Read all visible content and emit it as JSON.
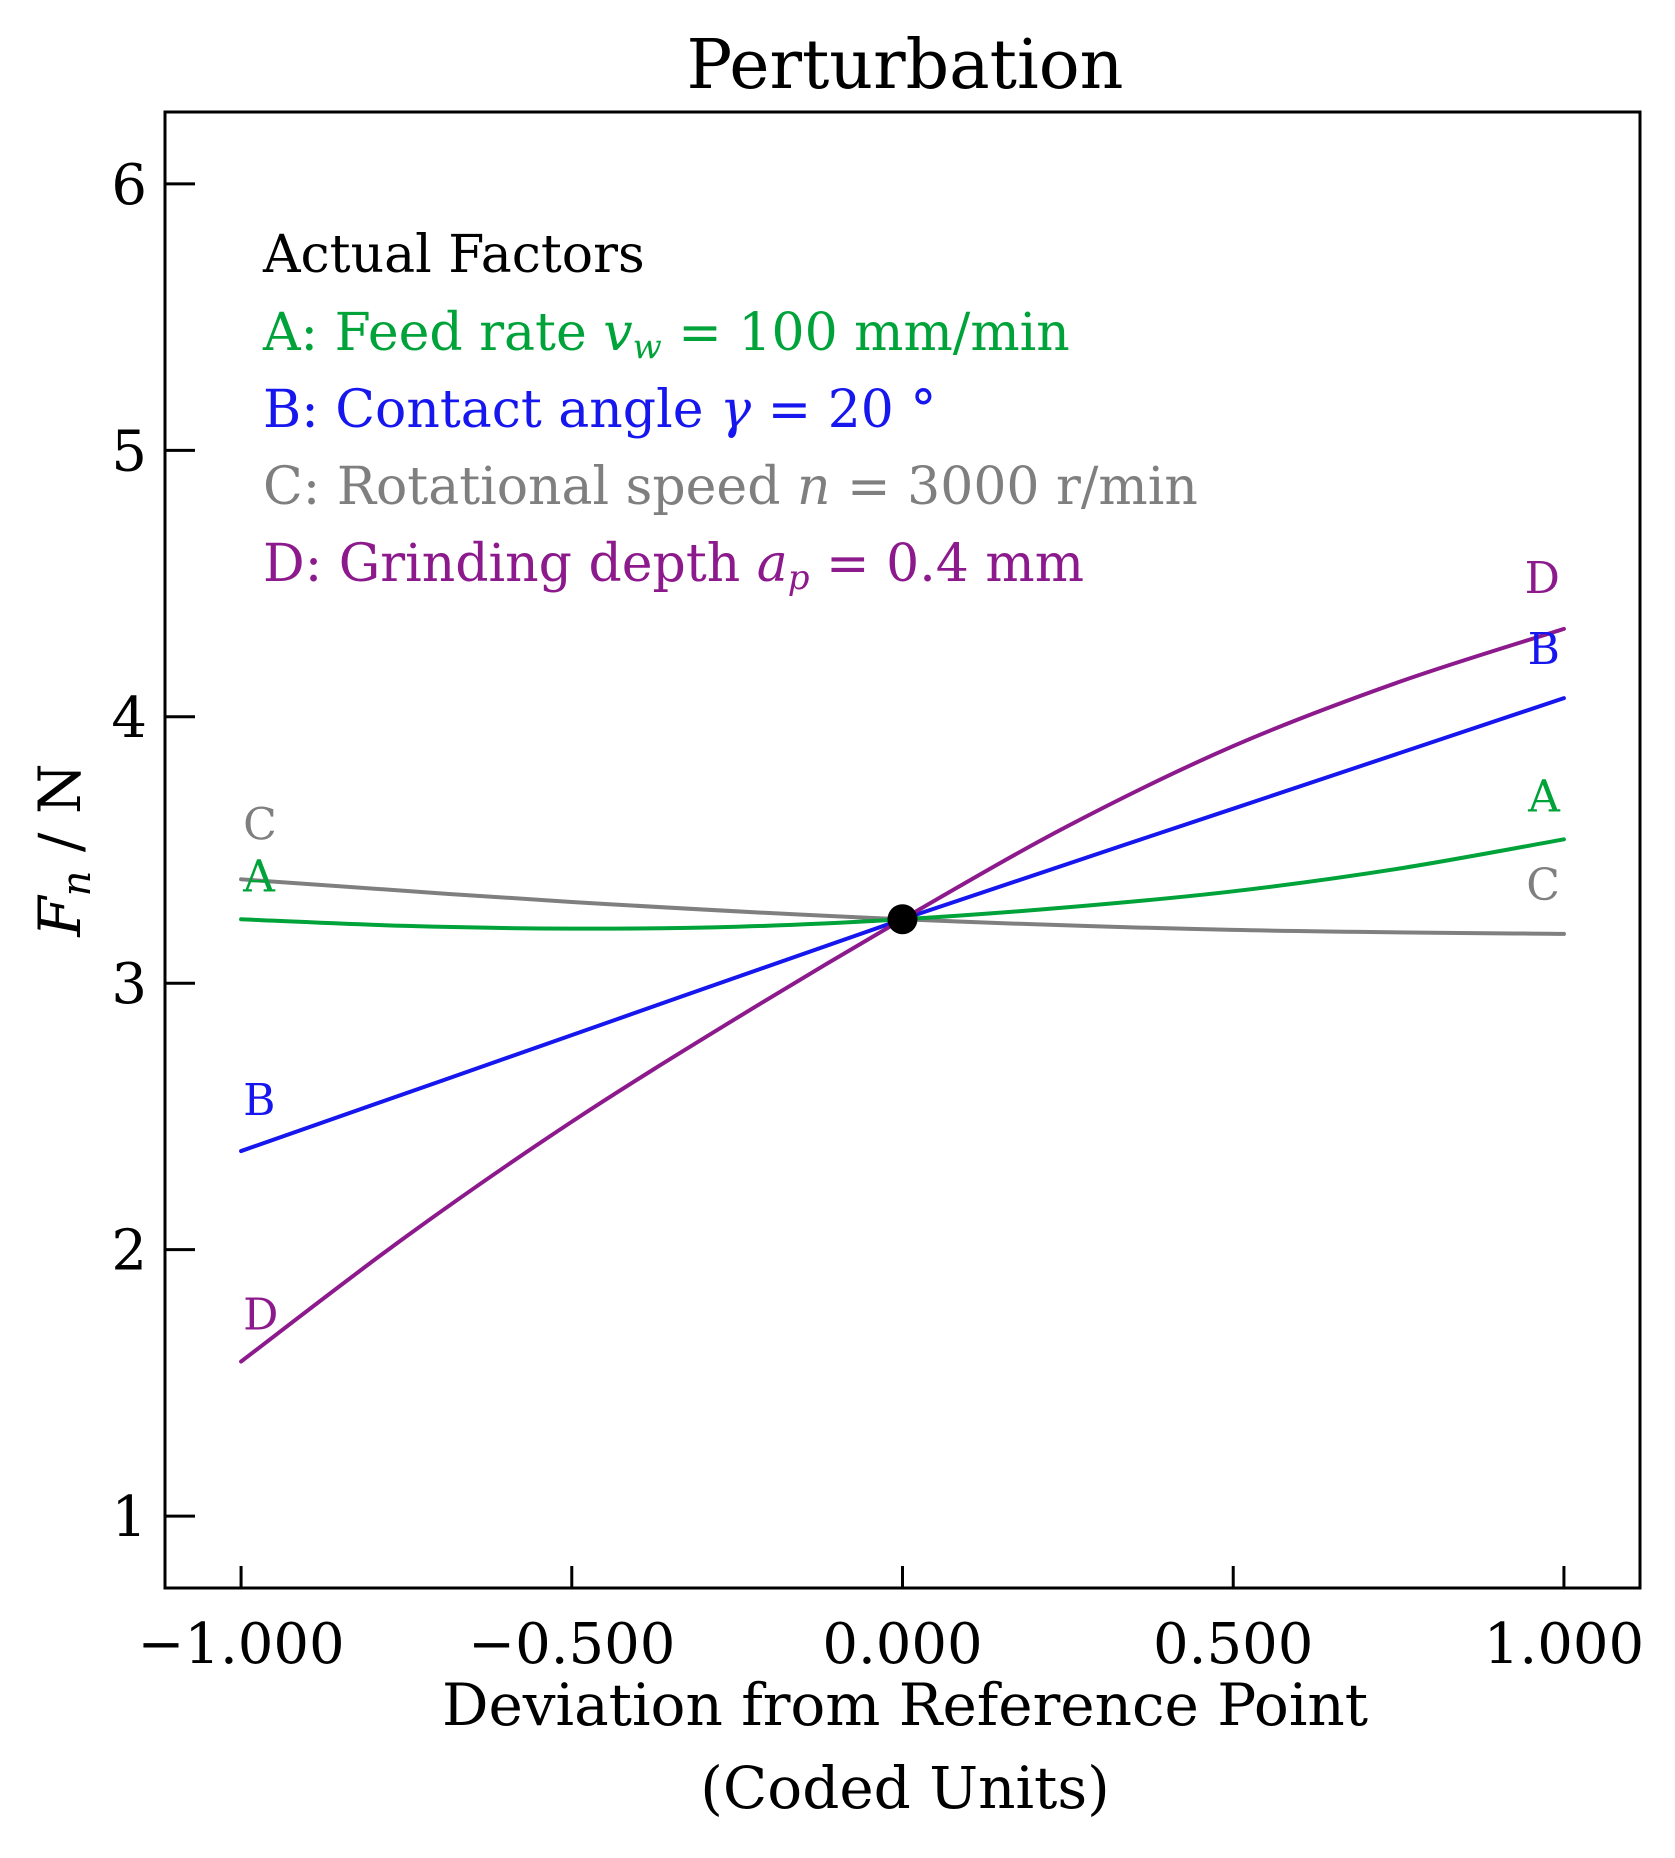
{
  "chart_data": {
    "type": "line",
    "title": "Perturbation",
    "xlabel": "Deviation from Reference Point",
    "xlabel_line2": "(Coded Units)",
    "ylabel": {
      "main": "F",
      "sub": "n",
      "rest": " / N"
    },
    "xlim": [
      -1.115,
      1.115
    ],
    "ylim": [
      0.73,
      6.27
    ],
    "xticks": [
      -1.0,
      -0.5,
      0.0,
      0.5,
      1.0
    ],
    "xtick_labels": [
      "−1.000",
      "−0.500",
      "0.000",
      "0.500",
      "1.000"
    ],
    "yticks": [
      1,
      2,
      3,
      4,
      5,
      6
    ],
    "ytick_labels": [
      "1",
      "2",
      "3",
      "4",
      "5",
      "6"
    ],
    "grid": false,
    "legend_title": "Actual Factors",
    "legend_placement": "top-left",
    "reference_point": {
      "x": 0.0,
      "y": 3.24
    },
    "series": [
      {
        "name": "A",
        "color": "#00a23a",
        "legend": {
          "prefix": "A: Feed rate ",
          "var": "v",
          "sub": "w",
          "suffix": " = 100 mm/min"
        },
        "x": [
          -1.0,
          -0.75,
          -0.5,
          -0.25,
          0.0,
          0.25,
          0.5,
          0.75,
          1.0
        ],
        "values": [
          3.24,
          3.215,
          3.205,
          3.212,
          3.24,
          3.285,
          3.345,
          3.43,
          3.54
        ]
      },
      {
        "name": "B",
        "color": "#1616ee",
        "legend": {
          "prefix": "B: Contact angle ",
          "var": "γ",
          "sub": "",
          "suffix": " = 20 °"
        },
        "x": [
          -1.0,
          -0.5,
          0.0,
          0.5,
          1.0
        ],
        "values": [
          2.37,
          2.805,
          3.24,
          3.655,
          4.07
        ]
      },
      {
        "name": "C",
        "color": "#7f7f7f",
        "legend": {
          "prefix": "C: Rotational speed ",
          "var": "n",
          "sub": "",
          "suffix": " = 3000 r/min"
        },
        "x": [
          -1.0,
          -0.5,
          0.0,
          0.5,
          1.0
        ],
        "values": [
          3.39,
          3.305,
          3.24,
          3.2,
          3.185
        ]
      },
      {
        "name": "D",
        "color": "#8c1a8c",
        "legend": {
          "prefix": "D: Grinding depth ",
          "var": "a",
          "sub": "p",
          "suffix": " = 0.4 mm"
        },
        "x": [
          -1.0,
          -0.75,
          -0.5,
          -0.25,
          0.0,
          0.25,
          0.5,
          0.75,
          1.0
        ],
        "values": [
          1.58,
          2.05,
          2.48,
          2.87,
          3.24,
          3.59,
          3.89,
          4.13,
          4.33
        ]
      }
    ]
  }
}
